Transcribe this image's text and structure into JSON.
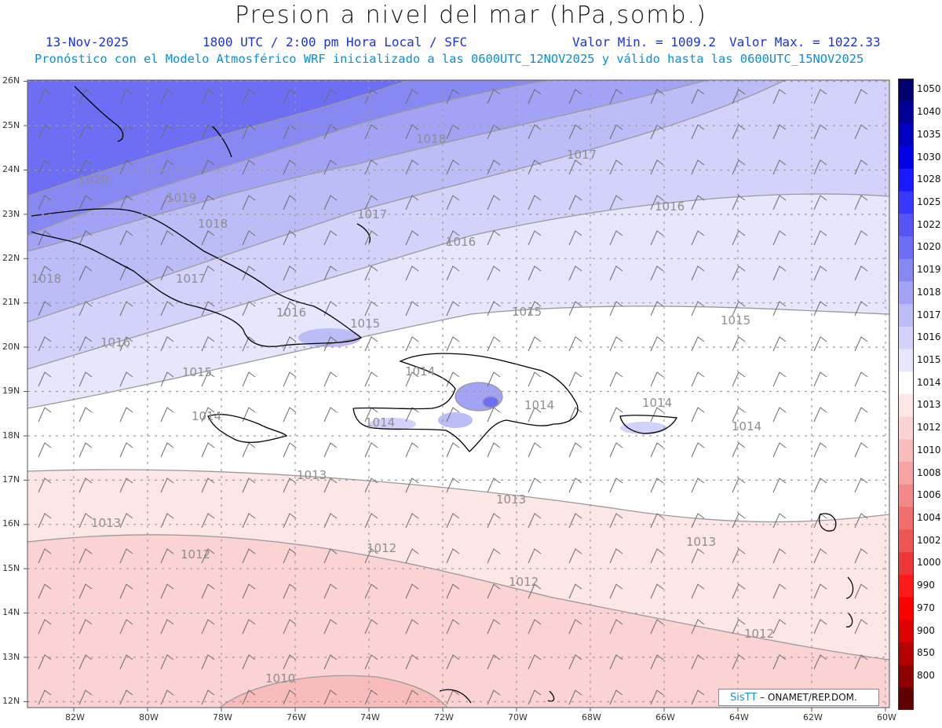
{
  "header": {
    "title": "Presion a nivel del mar (hPa,somb.)",
    "date": "13-Nov-2025",
    "time": "1800 UTC / 2:00 pm Hora Local / SFC",
    "min": "Valor Min. = 1009.2",
    "max": "Valor Max. = 1022.33",
    "forecast": "Pronóstico con el Modelo Atmosférico WRF inicializado a las 0600UTC_12NOV2025 y válido hasta las  0600UTC_15NOV2025"
  },
  "map": {
    "lat_labels": [
      "26N",
      "25N",
      "24N",
      "23N",
      "22N",
      "21N",
      "20N",
      "19N",
      "18N",
      "17N",
      "16N",
      "15N",
      "14N",
      "13N",
      "12N"
    ],
    "lon_labels": [
      "82W",
      "80W",
      "78W",
      "76W",
      "74W",
      "72W",
      "70W",
      "68W",
      "66W",
      "64W",
      "62W",
      "60W"
    ],
    "isobars": [
      {
        "label": "1020"
      },
      {
        "label": "1019"
      },
      {
        "label": "1018"
      },
      {
        "label": "1018"
      },
      {
        "label": "1018"
      },
      {
        "label": "1017"
      },
      {
        "label": "1017"
      },
      {
        "label": "1017"
      },
      {
        "label": "1016"
      },
      {
        "label": "1016"
      },
      {
        "label": "1016"
      },
      {
        "label": "1016"
      },
      {
        "label": "1015"
      },
      {
        "label": "1015"
      },
      {
        "label": "1015"
      },
      {
        "label": "1015"
      },
      {
        "label": "1014"
      },
      {
        "label": "1014"
      },
      {
        "label": "1014"
      },
      {
        "label": "1014"
      },
      {
        "label": "1014"
      },
      {
        "label": "1014"
      },
      {
        "label": "1013"
      },
      {
        "label": "1013"
      },
      {
        "label": "1013"
      },
      {
        "label": "1013"
      },
      {
        "label": "1012"
      },
      {
        "label": "1012"
      },
      {
        "label": "1012"
      },
      {
        "label": "1012"
      },
      {
        "label": "1010"
      }
    ]
  },
  "colorbar": {
    "levels": [
      {
        "value": "1050",
        "color": "#00006e"
      },
      {
        "value": "1040",
        "color": "#000096"
      },
      {
        "value": "1035",
        "color": "#0000c0"
      },
      {
        "value": "1030",
        "color": "#0000e6"
      },
      {
        "value": "1028",
        "color": "#1a1aff"
      },
      {
        "value": "1025",
        "color": "#3838ff"
      },
      {
        "value": "1022",
        "color": "#5555f5"
      },
      {
        "value": "1020",
        "color": "#6e6ef4"
      },
      {
        "value": "1019",
        "color": "#8888f2"
      },
      {
        "value": "1018",
        "color": "#a3a3f5"
      },
      {
        "value": "1017",
        "color": "#bcbcf7"
      },
      {
        "value": "1016",
        "color": "#d2d2fa"
      },
      {
        "value": "1015",
        "color": "#e6e6fc"
      },
      {
        "value": "1014",
        "color": "#ffffff"
      },
      {
        "value": "1013",
        "color": "#fde6e6"
      },
      {
        "value": "1012",
        "color": "#fbd3d3"
      },
      {
        "value": "1010",
        "color": "#f9bcbc"
      },
      {
        "value": "1008",
        "color": "#f6a3a3"
      },
      {
        "value": "1006",
        "color": "#f38888"
      },
      {
        "value": "1004",
        "color": "#f06e6e"
      },
      {
        "value": "1002",
        "color": "#ee5555"
      },
      {
        "value": "1000",
        "color": "#ee3838"
      },
      {
        "value": "990",
        "color": "#ff1a1a"
      },
      {
        "value": "970",
        "color": "#ff0000"
      },
      {
        "value": "900",
        "color": "#dd0000"
      },
      {
        "value": "850",
        "color": "#b40000"
      },
      {
        "value": "800",
        "color": "#8c0000"
      },
      {
        "value": "",
        "color": "#600000"
      }
    ]
  },
  "credit": {
    "logo": "SisTT",
    "text": "– ONAMET/REP.DOM."
  }
}
